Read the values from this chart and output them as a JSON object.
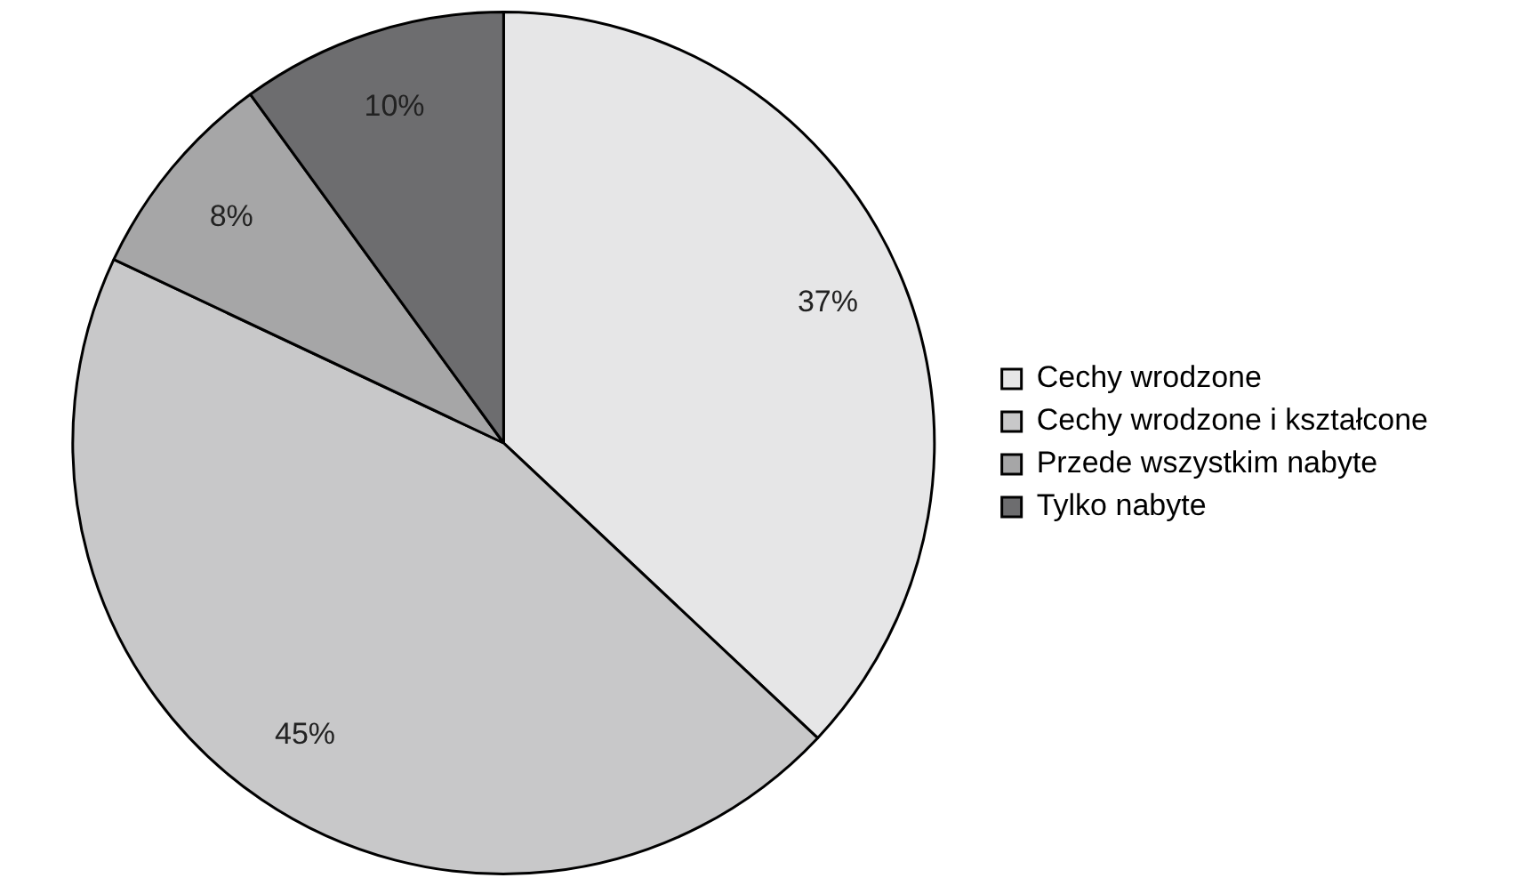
{
  "chart_data": {
    "type": "pie",
    "categories": [
      "Cechy wrodzone",
      "Cechy wrodzone i kształcone",
      "Przede wszystkim nabyte",
      "Tylko nabyte"
    ],
    "values": [
      37,
      45,
      8,
      10
    ],
    "colors": [
      "#e6e6e7",
      "#c8c8c9",
      "#a6a6a7",
      "#6d6d6f"
    ],
    "value_labels": [
      "37%",
      "45%",
      "8%",
      "10%"
    ],
    "legend": "right"
  }
}
